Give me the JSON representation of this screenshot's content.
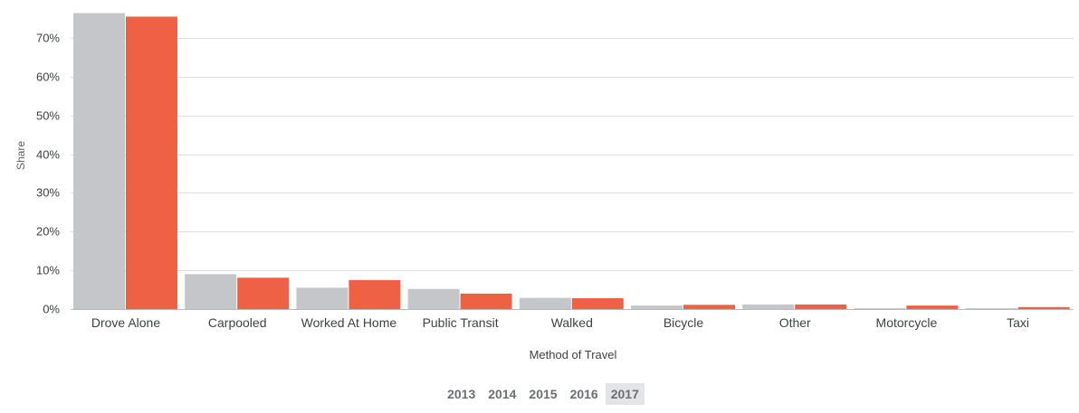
{
  "chart_data": {
    "type": "bar",
    "title": "",
    "xlabel": "Method of Travel",
    "ylabel": "Share",
    "ylim": [
      0,
      0.765
    ],
    "yticks": [
      0,
      0.1,
      0.2,
      0.3,
      0.4,
      0.5,
      0.6,
      0.7
    ],
    "ytick_labels": [
      "0%",
      "10%",
      "20%",
      "30%",
      "40%",
      "50%",
      "60%",
      "70%"
    ],
    "categories": [
      "Drove Alone",
      "Carpooled",
      "Worked At Home",
      "Public Transit",
      "Walked",
      "Bicycle",
      "Other",
      "Motorcycle",
      "Taxi"
    ],
    "series": [
      {
        "color": "#c5c6ca",
        "values": [
          0.764,
          0.09,
          0.055,
          0.052,
          0.029,
          0.009,
          0.012,
          0.002,
          0.002
        ]
      },
      {
        "color": "#ee6145",
        "values": [
          0.755,
          0.081,
          0.075,
          0.04,
          0.028,
          0.011,
          0.012,
          0.009,
          0.005
        ]
      }
    ],
    "grid": true,
    "legend": "none"
  },
  "year_selector": {
    "years": [
      "2013",
      "2014",
      "2015",
      "2016",
      "2017"
    ],
    "selected": "2017"
  }
}
